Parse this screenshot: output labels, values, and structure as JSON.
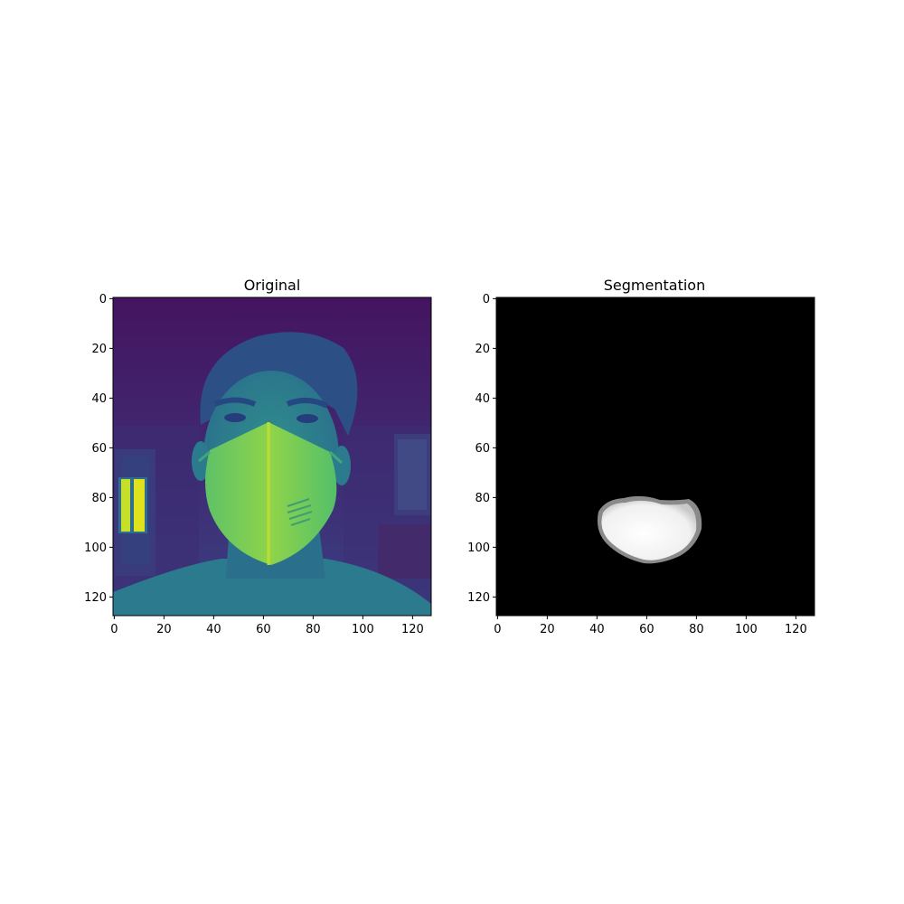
{
  "figure": {
    "panels": [
      {
        "title": "Original",
        "colormap": "viridis",
        "image_extent": [
          0,
          128
        ],
        "x_ticks": [
          0,
          20,
          40,
          60,
          80,
          100,
          120
        ],
        "y_ticks": [
          0,
          20,
          40,
          60,
          80,
          100,
          120
        ]
      },
      {
        "title": "Segmentation",
        "colormap": "gray",
        "image_extent": [
          0,
          128
        ],
        "x_ticks": [
          0,
          20,
          40,
          60,
          80,
          100,
          120
        ],
        "y_ticks": [
          0,
          20,
          40,
          60,
          80,
          100,
          120
        ],
        "mask_region_label": "mask blob"
      }
    ],
    "colors": {
      "viridis_dark": "#46125f",
      "viridis_mid": "#2d7e8e",
      "viridis_teal": "#2a9a8c",
      "viridis_green": "#55c26b",
      "viridis_yellow": "#d7e021",
      "mask_background": "#000000",
      "mask_foreground": "#f4f4f4"
    }
  }
}
